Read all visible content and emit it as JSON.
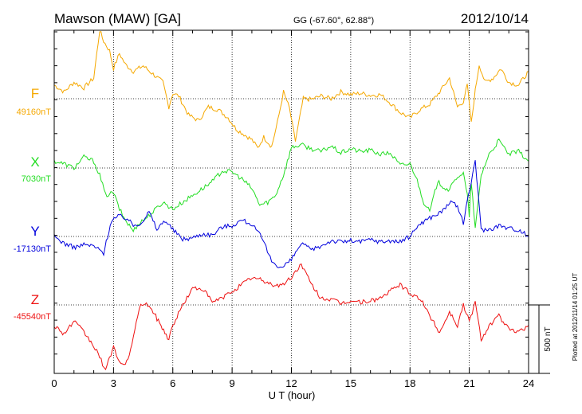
{
  "header": {
    "station": "Mawson (MAW)  [GA]",
    "coords": "GG (-67.60°,  62.88°)",
    "date": "2012/10/14"
  },
  "footer": {
    "scale_label": "500 nT",
    "plotted": "Plotted at 2012/11/14 01:25 UT"
  },
  "chart_data": {
    "type": "line",
    "title": "Mawson (MAW)  [GA]",
    "xlabel": "U T (hour)",
    "x_ticks": [
      "0",
      "3",
      "6",
      "9",
      "12",
      "15",
      "18",
      "21",
      "24"
    ],
    "xlim": [
      0,
      24
    ],
    "grid": true,
    "scale_bar_nT": 500,
    "series": [
      {
        "name": "F",
        "baseline_label": "49160nT",
        "baseline_nT": 49160,
        "color": "#f5a800",
        "hours": [
          0,
          0.5,
          1,
          1.5,
          2,
          2.3,
          2.5,
          2.8,
          3,
          3.3,
          3.6,
          4,
          4.5,
          5,
          5.5,
          5.8,
          6,
          6.3,
          6.8,
          7.3,
          7.8,
          8.3,
          8.8,
          9.2,
          9.6,
          10,
          10.3,
          10.6,
          11,
          11.3,
          11.6,
          11.9,
          12.2,
          12.6,
          13,
          13.5,
          14,
          14.5,
          15,
          15.5,
          16,
          16.5,
          17,
          17.5,
          18,
          18.5,
          19,
          19.5,
          20,
          20.4,
          20.7,
          20.9,
          21.1,
          21.3,
          21.5,
          21.8,
          22.2,
          22.6,
          23,
          23.5,
          24
        ],
        "values": [
          100,
          50,
          120,
          80,
          150,
          500,
          420,
          350,
          220,
          330,
          250,
          200,
          240,
          180,
          120,
          -60,
          40,
          20,
          -120,
          -160,
          -60,
          -80,
          -140,
          -220,
          -260,
          -300,
          -360,
          -280,
          -350,
          -170,
          50,
          -70,
          -310,
          0,
          -5,
          20,
          0,
          50,
          30,
          40,
          25,
          30,
          -30,
          -100,
          -140,
          -80,
          -40,
          50,
          150,
          -60,
          -20,
          100,
          -180,
          60,
          250,
          120,
          150,
          220,
          120,
          100,
          200
        ]
      },
      {
        "name": "X",
        "baseline_label": "7030nT",
        "baseline_nT": 7030,
        "color": "#22dd22",
        "hours": [
          0,
          0.5,
          1,
          1.5,
          2,
          2.3,
          2.6,
          3,
          3.3,
          3.6,
          4,
          4.3,
          4.7,
          5,
          5.5,
          6,
          6.5,
          7,
          7.5,
          8,
          8.5,
          9,
          9.5,
          10,
          10.4,
          10.8,
          11.2,
          11.6,
          12,
          12.5,
          13,
          13.5,
          14,
          14.5,
          15,
          15.5,
          16,
          16.5,
          17,
          17.5,
          18,
          18.3,
          18.7,
          19,
          19.4,
          19.8,
          20,
          20.4,
          20.7,
          20.9,
          21,
          21.1,
          21.3,
          21.6,
          22,
          22.5,
          23,
          23.5,
          24
        ],
        "values": [
          50,
          30,
          0,
          80,
          50,
          -50,
          -200,
          -180,
          -300,
          -380,
          -460,
          -400,
          -360,
          -320,
          -250,
          -300,
          -250,
          -200,
          -150,
          -100,
          -20,
          -30,
          -80,
          -150,
          -270,
          -250,
          -200,
          -50,
          150,
          170,
          140,
          120,
          160,
          110,
          140,
          120,
          130,
          100,
          110,
          20,
          30,
          -60,
          -250,
          -320,
          -100,
          -150,
          -160,
          -60,
          -40,
          -200,
          -350,
          -100,
          -450,
          -50,
          100,
          200,
          100,
          120,
          50
        ]
      },
      {
        "name": "Y",
        "baseline_label": "-17130nT",
        "baseline_nT": -17130,
        "color": "#0000dd",
        "hours": [
          0,
          0.5,
          1,
          1.5,
          2,
          2.5,
          2.9,
          3.3,
          3.7,
          4,
          4.4,
          4.8,
          5.2,
          5.6,
          6,
          6.5,
          7,
          7.5,
          8,
          8.5,
          9,
          9.5,
          10,
          10.5,
          11,
          11.5,
          12,
          12.5,
          13,
          13.5,
          14,
          14.5,
          15,
          15.5,
          16,
          16.5,
          17,
          17.5,
          18,
          18.4,
          18.8,
          19.2,
          19.6,
          20,
          20.4,
          20.7,
          20.9,
          21.1,
          21.3,
          21.6,
          22,
          22.5,
          23,
          23.5,
          24
        ],
        "values": [
          0,
          -50,
          -80,
          -60,
          -70,
          -120,
          120,
          150,
          130,
          80,
          100,
          180,
          50,
          120,
          50,
          -20,
          -10,
          20,
          10,
          70,
          80,
          120,
          90,
          -10,
          -180,
          -230,
          -170,
          -50,
          -100,
          -70,
          -30,
          -40,
          -30,
          -40,
          -20,
          -40,
          -30,
          -40,
          0,
          80,
          120,
          150,
          180,
          250,
          220,
          100,
          250,
          400,
          560,
          50,
          50,
          80,
          60,
          50,
          0
        ]
      },
      {
        "name": "Z",
        "baseline_label": "-45540nT",
        "baseline_nT": -45540,
        "color": "#ee1111",
        "hours": [
          0,
          0.5,
          1,
          1.5,
          2,
          2.3,
          2.6,
          3,
          3.3,
          3.6,
          4,
          4.3,
          4.6,
          5,
          5.4,
          5.8,
          6,
          6.5,
          7,
          7.5,
          8,
          8.5,
          9,
          9.5,
          10,
          10.5,
          11,
          11.5,
          12,
          12.5,
          13,
          13.5,
          14,
          14.5,
          15,
          15.5,
          16,
          16.5,
          17,
          17.5,
          18,
          18.5,
          19,
          19.5,
          20,
          20.4,
          20.7,
          21,
          21.3,
          21.6,
          22,
          22.5,
          23,
          23.5,
          24
        ],
        "values": [
          -150,
          -210,
          -120,
          -200,
          -300,
          -380,
          -480,
          -300,
          -420,
          -450,
          -250,
          -20,
          20,
          -50,
          -150,
          -250,
          -150,
          0,
          120,
          120,
          20,
          50,
          100,
          150,
          200,
          180,
          150,
          140,
          200,
          300,
          150,
          50,
          40,
          10,
          30,
          20,
          30,
          50,
          100,
          150,
          80,
          50,
          -80,
          -200,
          -50,
          -150,
          0,
          -120,
          20,
          -250,
          -150,
          -80,
          -180,
          -200,
          -150
        ]
      }
    ]
  }
}
